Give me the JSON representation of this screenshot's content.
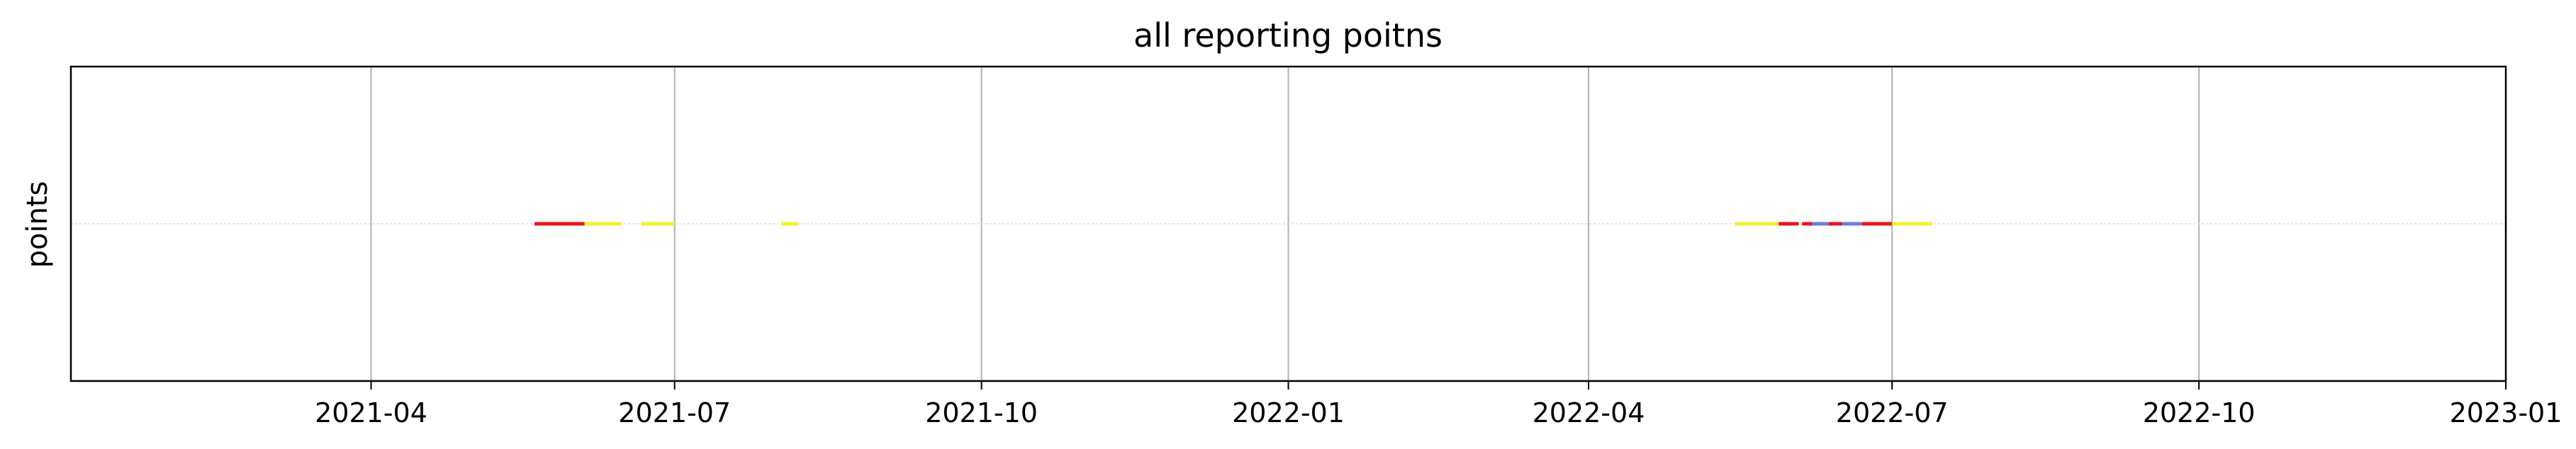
{
  "chart_data": {
    "type": "timeline",
    "title": "all reporting poitns",
    "xlabel": "",
    "ylabel": "points",
    "xlim": [
      "2021-01-01",
      "2023-01-01"
    ],
    "x_ticks": [
      "2021-04",
      "2021-07",
      "2021-10",
      "2022-01",
      "2022-04",
      "2022-07",
      "2022-10",
      "2023-01"
    ],
    "grid": {
      "x": true,
      "y_reference_line": true
    },
    "colors": {
      "red": "#e8141e",
      "yellow": "#f2f22a",
      "blue": "#6b7ddc",
      "grid": "#b0b0b0",
      "ref_line": "#d8d8d8"
    },
    "segments": [
      {
        "start": "2021-05-20",
        "end": "2021-06-04",
        "color": "red"
      },
      {
        "start": "2021-06-04",
        "end": "2021-06-15",
        "color": "yellow"
      },
      {
        "start": "2021-06-21",
        "end": "2021-07-01",
        "color": "yellow"
      },
      {
        "start": "2021-08-02",
        "end": "2021-08-07",
        "color": "yellow"
      },
      {
        "start": "2022-05-15",
        "end": "2022-05-28",
        "color": "yellow"
      },
      {
        "start": "2022-05-28",
        "end": "2022-06-03",
        "color": "red"
      },
      {
        "start": "2022-06-04",
        "end": "2022-06-07",
        "color": "red"
      },
      {
        "start": "2022-06-07",
        "end": "2022-06-12",
        "color": "blue"
      },
      {
        "start": "2022-06-12",
        "end": "2022-06-16",
        "color": "red"
      },
      {
        "start": "2022-06-16",
        "end": "2022-06-22",
        "color": "blue"
      },
      {
        "start": "2022-06-22",
        "end": "2022-07-01",
        "color": "red"
      },
      {
        "start": "2022-07-01",
        "end": "2022-07-13",
        "color": "yellow"
      }
    ]
  }
}
